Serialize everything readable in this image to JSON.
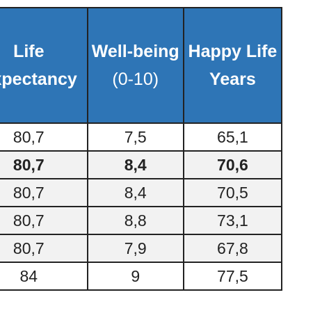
{
  "table": {
    "headers": [
      {
        "line1": "Life",
        "line2": "Expectancy"
      },
      {
        "line1": "Well-being",
        "line2": "(0-10)"
      },
      {
        "line1": "Happy Life",
        "line2": "Years"
      }
    ],
    "rows": [
      [
        "80,7",
        "7,5",
        "65,1"
      ],
      [
        "80,7",
        "8,4",
        "70,6"
      ],
      [
        "80,7",
        "8,4",
        "70,5"
      ],
      [
        "80,7",
        "8,8",
        "73,1"
      ],
      [
        "80,7",
        "7,9",
        "67,8"
      ],
      [
        "84",
        "9",
        "77,5"
      ]
    ]
  },
  "colors": {
    "header_bg": "#2e75b6",
    "header_text": "#ffffff",
    "shaded_row_bg": "#f2f2f2",
    "border": "#222222"
  }
}
